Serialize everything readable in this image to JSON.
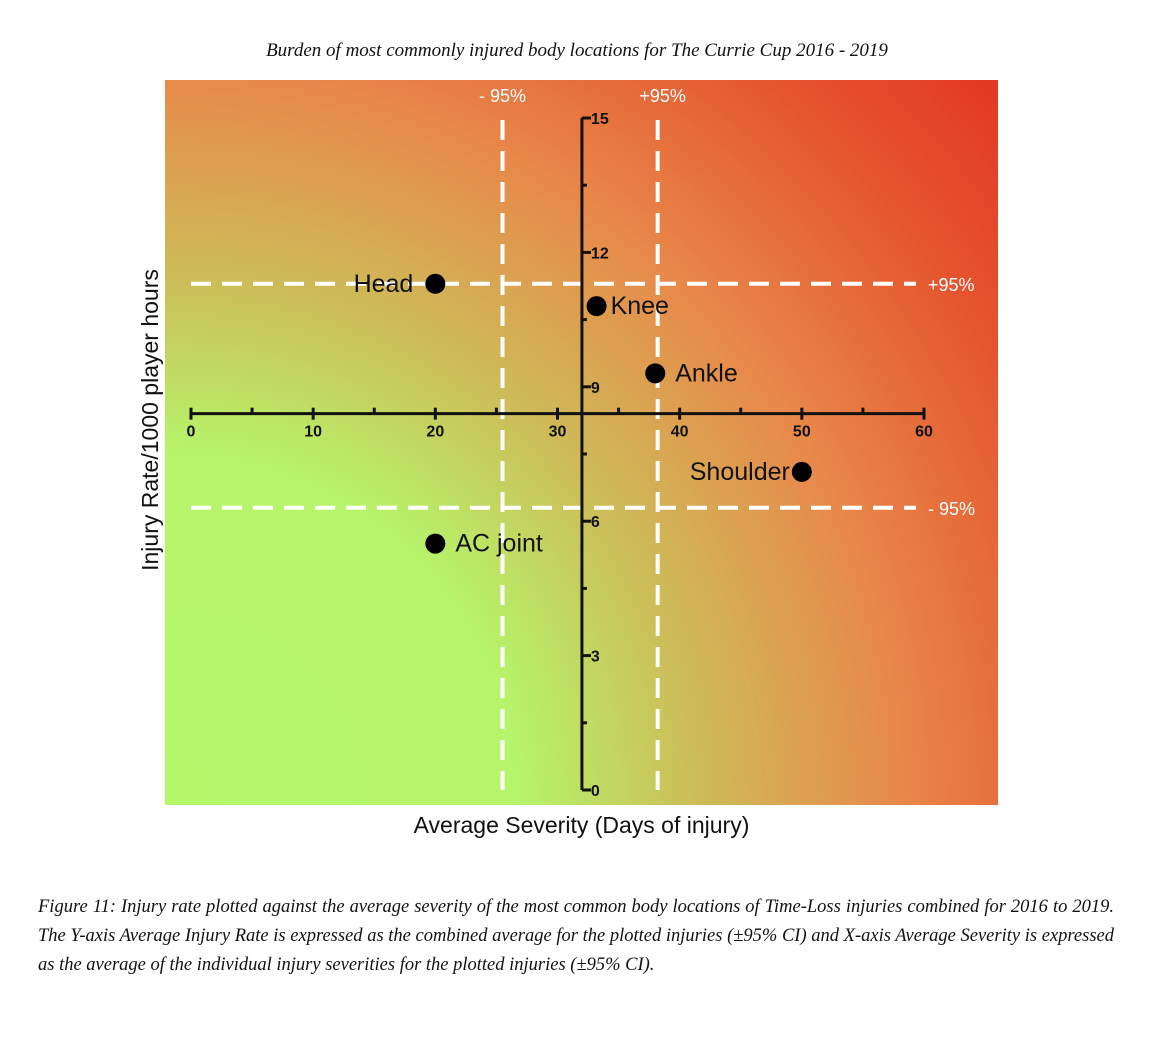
{
  "chart_data": {
    "type": "scatter",
    "title": "Burden of most commonly injured body locations for The Currie Cup 2016 - 2019",
    "xlabel": "Average Severity (Days of injury)",
    "ylabel": "Injury Rate/1000 player hours",
    "xlim": [
      0,
      60
    ],
    "ylim": [
      0,
      15
    ],
    "x_ticks": [
      0,
      10,
      20,
      30,
      40,
      50,
      60
    ],
    "y_ticks": [
      0,
      3,
      6,
      9,
      12,
      15
    ],
    "x_axis_crosses_y_at": 8.4,
    "y_axis_crosses_x_at": 32,
    "points": [
      {
        "label": "Head",
        "x": 20,
        "y": 11.3
      },
      {
        "label": "Knee",
        "x": 33.2,
        "y": 10.8
      },
      {
        "label": "Ankle",
        "x": 38,
        "y": 9.3
      },
      {
        "label": "Shoulder",
        "x": 50,
        "y": 7.1
      },
      {
        "label": "AC joint",
        "x": 20,
        "y": 5.5
      }
    ],
    "reference_lines": {
      "x_lower": {
        "label": "- 95%",
        "value": 25.5
      },
      "x_upper": {
        "label": "+95%",
        "value": 38.2
      },
      "y_upper": {
        "label": "+95%",
        "value": 11.3
      },
      "y_lower": {
        "label": "- 95%",
        "value": 6.3
      }
    },
    "background": "heatmap gradient from green (low rate, low severity) to red (high rate, high severity)",
    "colors": {
      "low": "#b8f56a",
      "mid": "#e8884a",
      "high": "#e3301f",
      "reference_line": "#ffffff",
      "point": "#000000"
    }
  },
  "caption": "Figure 11: Injury rate plotted against the average severity of the most common body locations of Time-Loss injuries combined for 2016 to 2019. The Y-axis Average Injury Rate is expressed as the combined average for the plotted injuries (±95% CI) and X-axis Average Severity is expressed as the average of the individual injury severities for the plotted injuries (±95% CI)."
}
